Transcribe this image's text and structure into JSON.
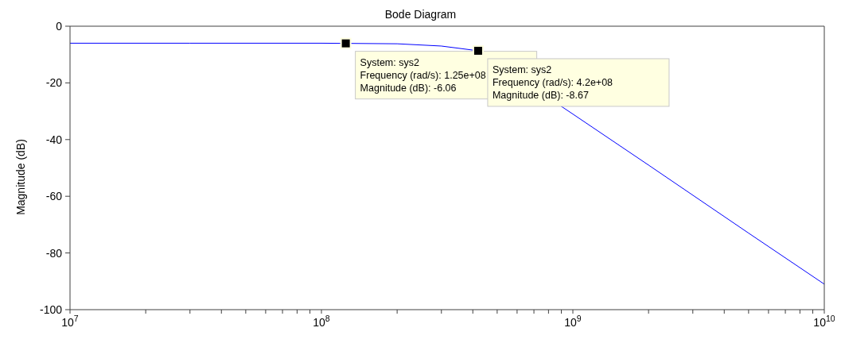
{
  "chart_data": {
    "type": "line",
    "title": "Bode Diagram",
    "ylabel": "Magnitude (dB)",
    "x": [
      10000000.0,
      30000000.0,
      100000000.0,
      125000000.0,
      200000000.0,
      300000000.0,
      420000000.0,
      1000000000.0,
      2000000000.0,
      5000000000.0,
      10000000000.0
    ],
    "series": [
      {
        "color": "#0000ff",
        "values": [
          -6,
          -6,
          -6,
          -6.06,
          -6.2,
          -7,
          -8.67,
          -31,
          -49,
          -73,
          -91
        ]
      }
    ],
    "log": "x",
    "xlim": [
      10000000.0,
      10000000000.0
    ],
    "xticks": [
      {
        "value": 10000000.0,
        "label": "10$^{7}$"
      },
      {
        "value": 20000000.0,
        "label": null
      },
      {
        "value": 30000000.0,
        "label": null
      },
      {
        "value": 40000000.0,
        "label": null
      },
      {
        "value": 50000000.0,
        "label": null
      },
      {
        "value": 60000000.0,
        "label": null
      },
      {
        "value": 70000000.0,
        "label": null
      },
      {
        "value": 80000000.0,
        "label": null
      },
      {
        "value": 90000000.0,
        "label": null
      },
      {
        "value": 100000000.0,
        "label": "10$^{8}$"
      },
      {
        "value": 200000000.0,
        "label": null
      },
      {
        "value": 300000000.0,
        "label": null
      },
      {
        "value": 400000000.0,
        "label": null
      },
      {
        "value": 500000000.0,
        "label": null
      },
      {
        "value": 600000000.0,
        "label": null
      },
      {
        "value": 700000000.0,
        "label": null
      },
      {
        "value": 800000000.0,
        "label": null
      },
      {
        "value": 900000000.0,
        "label": null
      },
      {
        "value": 1000000000.0,
        "label": "10$^{9}$"
      },
      {
        "value": 2000000000.0,
        "label": null
      },
      {
        "value": 3000000000.0,
        "label": null
      },
      {
        "value": 4000000000.0,
        "label": null
      },
      {
        "value": 5000000000.0,
        "label": null
      },
      {
        "value": 6000000000.0,
        "label": null
      },
      {
        "value": 7000000000.0,
        "label": null
      },
      {
        "value": 8000000000.0,
        "label": null
      },
      {
        "value": 9000000000.0,
        "label": null
      },
      {
        "value": 10000000000.0,
        "label": "10$^{10}$"
      }
    ],
    "ylim": [
      -100,
      0
    ],
    "yticks": [
      -100,
      -80,
      -60,
      -40,
      -20,
      0
    ],
    "grid": false,
    "legend": false,
    "marker": "none",
    "line_style": "solid",
    "annotations": [
      {
        "text": "System: sys2\nFrequency (rad/s): 1.25e+08\nMagnitude (dB): -6.06",
        "x": 125000000.0,
        "y": -6.06
      },
      {
        "text": "System: sys2\nFrequency (rad/s): 4.2e+08\nMagnitude (dB): -8.67",
        "x": 420000000.0,
        "y": -8.67
      }
    ]
  }
}
